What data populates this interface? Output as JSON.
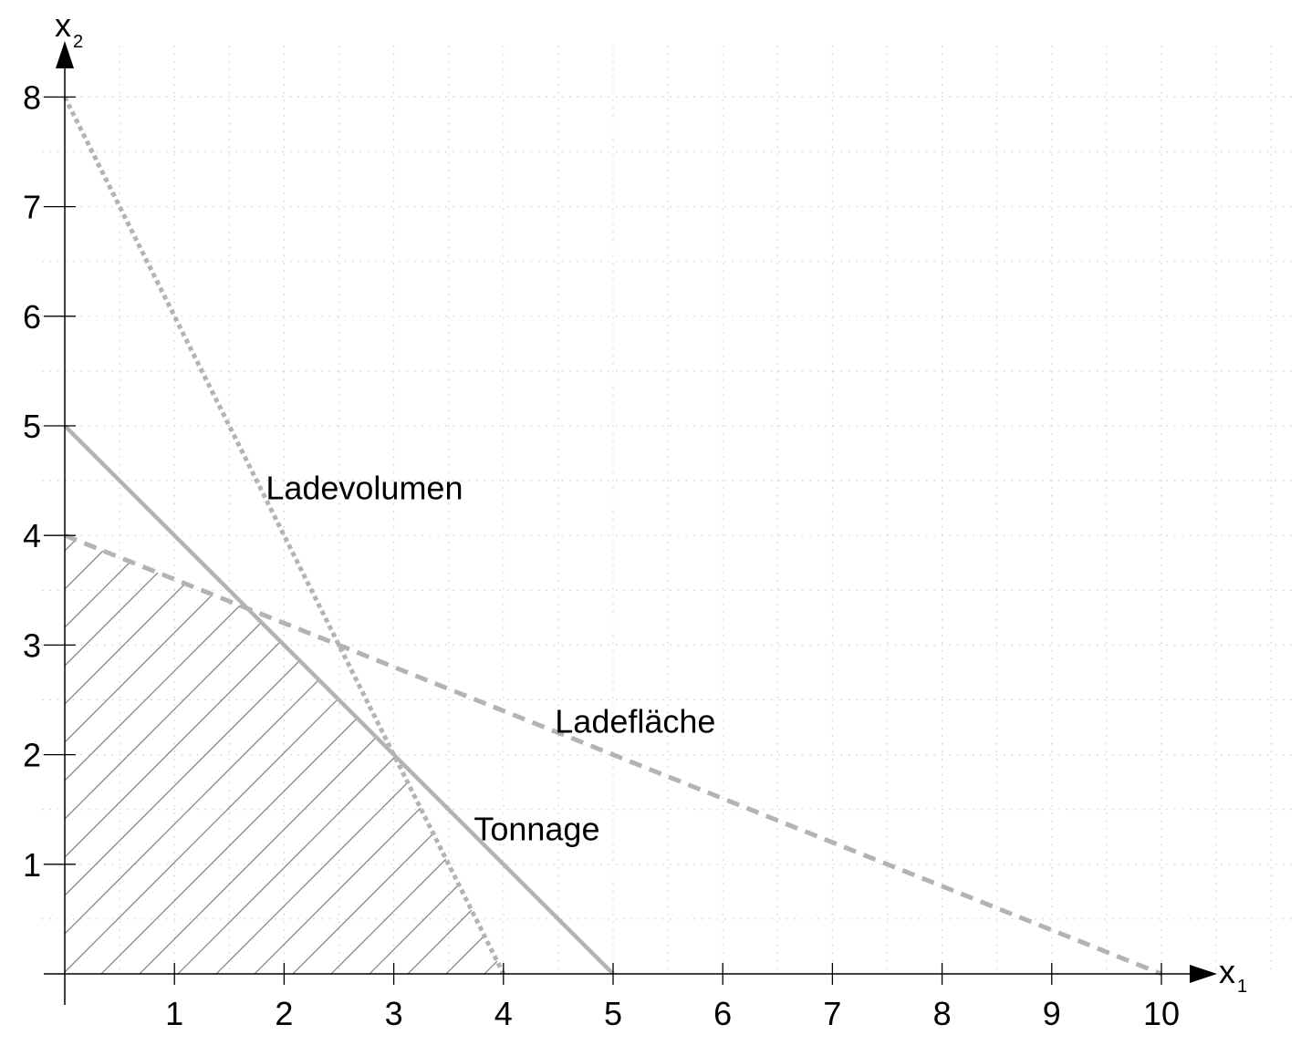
{
  "chart_data": {
    "type": "line",
    "title": "",
    "xlabel": {
      "base": "x",
      "sub": "1"
    },
    "ylabel": {
      "base": "x",
      "sub": "2"
    },
    "xlim": [
      0,
      11
    ],
    "ylim": [
      0,
      8
    ],
    "xticks": [
      1,
      2,
      3,
      4,
      5,
      6,
      7,
      8,
      9,
      10
    ],
    "yticks": [
      1,
      2,
      3,
      4,
      5,
      6,
      7,
      8
    ],
    "grid": true,
    "grid_style": "dotted",
    "series": [
      {
        "name": "Ladevolumen",
        "style": "dotted",
        "color": "#b3b3b3",
        "points": [
          [
            0,
            8
          ],
          [
            4,
            0
          ]
        ]
      },
      {
        "name": "Tonnage",
        "style": "solid",
        "color": "#b3b3b3",
        "points": [
          [
            0,
            5
          ],
          [
            5,
            0
          ]
        ]
      },
      {
        "name": "Ladefläche",
        "style": "dashed",
        "color": "#b3b3b3",
        "points": [
          [
            0,
            4
          ],
          [
            10,
            0
          ]
        ]
      }
    ],
    "feasible_region": {
      "fill": "hatched",
      "color": "#7f7f7f",
      "vertices": [
        [
          0,
          0
        ],
        [
          0,
          4
        ],
        [
          1.6667,
          3.3333
        ],
        [
          3,
          2
        ],
        [
          4,
          0
        ]
      ]
    },
    "annotations": [
      {
        "text": "Ladevolumen",
        "x": 1.833,
        "y": 4.33
      },
      {
        "text": "Ladefläche",
        "x": 4.47,
        "y": 2.2
      },
      {
        "text": "Tonnage",
        "x": 3.73,
        "y": 1.22
      }
    ]
  }
}
